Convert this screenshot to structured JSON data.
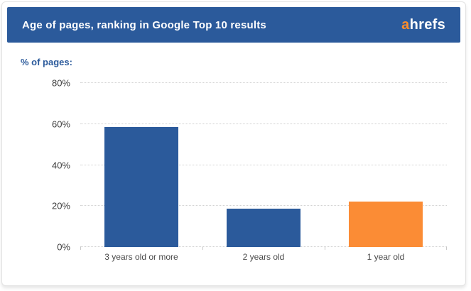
{
  "header": {
    "title": "Age of pages, ranking in Google Top 10 results",
    "logo_prefix": "a",
    "logo_suffix": "hrefs"
  },
  "chart_data": {
    "type": "bar",
    "title": "Age of pages, ranking in Google Top 10 results",
    "y_axis_title": "% of pages:",
    "xlabel": "",
    "ylabel": "% of pages",
    "ylim": [
      0,
      80
    ],
    "grid": "horizontal dotted",
    "legend": "none",
    "categories": [
      "3 years old or more",
      "2 years old",
      "1 year old"
    ],
    "values": [
      58.5,
      18.7,
      22
    ],
    "bar_colors": [
      "#2b5a9b",
      "#2b5a9b",
      "#fb8c35"
    ],
    "y_ticks": [
      {
        "label": "80%",
        "value": 80
      },
      {
        "label": "60%",
        "value": 60
      },
      {
        "label": "40%",
        "value": 40
      },
      {
        "label": "20%",
        "value": 20
      },
      {
        "label": "0%",
        "value": 0
      }
    ]
  },
  "colors": {
    "header_bg": "#2b5a9b",
    "logo_accent": "#ff8d2a",
    "bar_blue": "#2b5a9b",
    "bar_orange": "#fb8c35",
    "grid": "#d2d2d2",
    "tick_text": "#3d3d3d"
  }
}
